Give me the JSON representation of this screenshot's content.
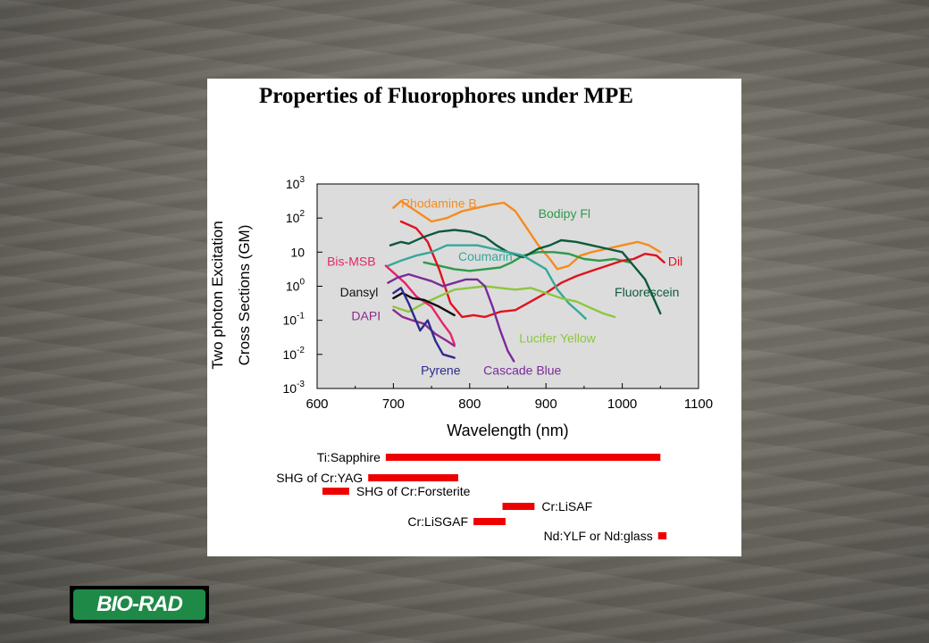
{
  "slide": {
    "title": "Properties of Fluorophores under MPE"
  },
  "logo": {
    "text": "BIO-RAD",
    "color": "#1f8a47"
  },
  "chart_data": {
    "type": "line",
    "xlabel": "Wavelength (nm)",
    "ylabel_lines": [
      "Two photon Excitation",
      "Cross Sections (GM)"
    ],
    "xlim": [
      600,
      1100
    ],
    "xticks": [
      600,
      700,
      800,
      900,
      1000,
      1100
    ],
    "ylim_log10": [
      -3,
      3
    ],
    "yscale": "log",
    "yticks": [
      {
        "base": "10",
        "exp": "-3",
        "value": -3
      },
      {
        "base": "10",
        "exp": "-2",
        "value": -2
      },
      {
        "base": "10",
        "exp": "-1",
        "value": -1
      },
      {
        "base": "10",
        "exp": "0",
        "value": 0
      },
      {
        "base": "10",
        "exp": "",
        "value": 1
      },
      {
        "base": "10",
        "exp": "2",
        "value": 2
      },
      {
        "base": "10",
        "exp": "3",
        "value": 3
      }
    ],
    "grid": false,
    "series": [
      {
        "name": "Rhodamine B",
        "color": "#f68b1e",
        "label_at": [
          710,
          2.3
        ],
        "points": [
          [
            700,
            2.3
          ],
          [
            710,
            2.5
          ],
          [
            730,
            2.2
          ],
          [
            750,
            1.9
          ],
          [
            770,
            2.0
          ],
          [
            790,
            2.2
          ],
          [
            810,
            2.3
          ],
          [
            830,
            2.4
          ],
          [
            845,
            2.45
          ],
          [
            860,
            2.2
          ],
          [
            875,
            1.7
          ],
          [
            890,
            1.2
          ],
          [
            905,
            0.8
          ],
          [
            915,
            0.5
          ],
          [
            930,
            0.6
          ],
          [
            945,
            0.9
          ],
          [
            960,
            1.0
          ],
          [
            980,
            1.1
          ],
          [
            1000,
            1.2
          ],
          [
            1020,
            1.3
          ],
          [
            1035,
            1.2
          ],
          [
            1050,
            1.0
          ]
        ]
      },
      {
        "name": "Bodipy Fl",
        "color": "#2e9a4a",
        "label_at": [
          890,
          2.0
        ],
        "points": [
          [
            740,
            0.7
          ],
          [
            760,
            0.6
          ],
          [
            780,
            0.5
          ],
          [
            800,
            0.45
          ],
          [
            820,
            0.5
          ],
          [
            840,
            0.55
          ],
          [
            855,
            0.7
          ],
          [
            870,
            0.9
          ],
          [
            890,
            1.0
          ],
          [
            910,
            1.0
          ],
          [
            930,
            0.95
          ],
          [
            950,
            0.8
          ],
          [
            970,
            0.75
          ],
          [
            990,
            0.8
          ],
          [
            1010,
            0.7
          ]
        ]
      },
      {
        "name": "Dil",
        "color": "#e0121e",
        "label_at": [
          1060,
          0.6
        ],
        "points": [
          [
            710,
            1.9
          ],
          [
            730,
            1.7
          ],
          [
            745,
            1.3
          ],
          [
            760,
            0.5
          ],
          [
            775,
            -0.5
          ],
          [
            790,
            -0.9
          ],
          [
            805,
            -0.85
          ],
          [
            820,
            -0.9
          ],
          [
            840,
            -0.75
          ],
          [
            860,
            -0.7
          ],
          [
            880,
            -0.45
          ],
          [
            900,
            -0.2
          ],
          [
            920,
            0.1
          ],
          [
            940,
            0.3
          ],
          [
            960,
            0.45
          ],
          [
            980,
            0.6
          ],
          [
            1000,
            0.75
          ],
          [
            1015,
            0.8
          ],
          [
            1030,
            0.95
          ],
          [
            1045,
            0.9
          ],
          [
            1055,
            0.7
          ]
        ]
      },
      {
        "name": "Fluorescein",
        "color": "#0d5a3a",
        "label_at": [
          990,
          -0.3
        ],
        "points": [
          [
            696,
            1.2
          ],
          [
            710,
            1.3
          ],
          [
            720,
            1.25
          ],
          [
            740,
            1.45
          ],
          [
            760,
            1.6
          ],
          [
            780,
            1.65
          ],
          [
            800,
            1.6
          ],
          [
            820,
            1.45
          ],
          [
            835,
            1.2
          ],
          [
            850,
            1.0
          ],
          [
            870,
            0.85
          ],
          [
            890,
            1.1
          ],
          [
            905,
            1.2
          ],
          [
            920,
            1.35
          ],
          [
            940,
            1.3
          ],
          [
            960,
            1.2
          ],
          [
            980,
            1.1
          ],
          [
            1000,
            1.0
          ],
          [
            1015,
            0.6
          ],
          [
            1030,
            0.2
          ],
          [
            1040,
            -0.3
          ],
          [
            1050,
            -0.8
          ]
        ]
      },
      {
        "name": "Coumarin",
        "color": "#35a89a",
        "label_at": [
          785,
          0.75
        ],
        "points": [
          [
            693,
            0.6
          ],
          [
            710,
            0.75
          ],
          [
            730,
            0.9
          ],
          [
            750,
            1.0
          ],
          [
            770,
            1.2
          ],
          [
            790,
            1.2
          ],
          [
            810,
            1.2
          ],
          [
            830,
            1.1
          ],
          [
            850,
            1.0
          ],
          [
            870,
            0.9
          ],
          [
            885,
            0.7
          ],
          [
            900,
            0.5
          ],
          [
            915,
            -0.1
          ],
          [
            930,
            -0.5
          ],
          [
            945,
            -0.8
          ],
          [
            952,
            -0.95
          ]
        ]
      },
      {
        "name": "Lucifer Yellow",
        "color": "#8cc63f",
        "label_at": [
          865,
          -1.65
        ],
        "points": [
          [
            700,
            -0.6
          ],
          [
            720,
            -0.75
          ],
          [
            740,
            -0.5
          ],
          [
            760,
            -0.3
          ],
          [
            780,
            -0.1
          ],
          [
            800,
            -0.05
          ],
          [
            820,
            0.0
          ],
          [
            840,
            -0.05
          ],
          [
            860,
            -0.1
          ],
          [
            880,
            -0.05
          ],
          [
            900,
            -0.2
          ],
          [
            920,
            -0.35
          ],
          [
            940,
            -0.45
          ],
          [
            960,
            -0.65
          ],
          [
            975,
            -0.8
          ],
          [
            990,
            -0.9
          ]
        ]
      },
      {
        "name": "Bis-MSB",
        "color": "#e8226b",
        "label_at": [
          613,
          0.6
        ],
        "points": [
          [
            690,
            0.6
          ],
          [
            700,
            0.4
          ],
          [
            715,
            0.1
          ],
          [
            730,
            -0.3
          ],
          [
            750,
            -0.6
          ],
          [
            765,
            -1.1
          ],
          [
            775,
            -1.4
          ],
          [
            780,
            -1.7
          ]
        ]
      },
      {
        "name": "Dansyl",
        "color": "#111111",
        "label_at": [
          630,
          -0.3
        ],
        "points": [
          [
            700,
            -0.35
          ],
          [
            712,
            -0.2
          ],
          [
            725,
            -0.35
          ],
          [
            740,
            -0.4
          ],
          [
            760,
            -0.6
          ],
          [
            780,
            -0.85
          ]
        ]
      },
      {
        "name": "DAPI",
        "color": "#8c2a8c",
        "label_at": [
          645,
          -1.0
        ],
        "points": [
          [
            700,
            -0.7
          ],
          [
            712,
            -0.9
          ],
          [
            725,
            -1.0
          ],
          [
            740,
            -1.1
          ],
          [
            755,
            -1.4
          ],
          [
            770,
            -1.6
          ],
          [
            780,
            -1.75
          ]
        ]
      },
      {
        "name": "Pyrene",
        "color": "#2e2a8c",
        "label_at": [
          736,
          -2.6
        ],
        "points": [
          [
            700,
            -0.2
          ],
          [
            710,
            -0.05
          ],
          [
            720,
            -0.5
          ],
          [
            735,
            -1.3
          ],
          [
            745,
            -1.0
          ],
          [
            755,
            -1.6
          ],
          [
            765,
            -2.0
          ],
          [
            780,
            -2.1
          ]
        ]
      },
      {
        "name": "Cascade Blue",
        "color": "#7a2a9a",
        "label_at": [
          818,
          -2.6
        ],
        "points": [
          [
            693,
            0.1
          ],
          [
            705,
            0.25
          ],
          [
            720,
            0.35
          ],
          [
            735,
            0.25
          ],
          [
            750,
            0.15
          ],
          [
            765,
            0.0
          ],
          [
            780,
            0.1
          ],
          [
            795,
            0.2
          ],
          [
            810,
            0.2
          ],
          [
            820,
            0.0
          ],
          [
            830,
            -0.6
          ],
          [
            840,
            -1.3
          ],
          [
            850,
            -1.9
          ],
          [
            858,
            -2.2
          ]
        ]
      }
    ],
    "lasers": [
      {
        "name": "Ti:Sapphire",
        "range": [
          690,
          1050
        ],
        "label_side": "left"
      },
      {
        "name": "SHG of Cr:YAG",
        "range": [
          667,
          785
        ],
        "label_side": "left"
      },
      {
        "name": "SHG of Cr:Forsterite",
        "range": [
          607,
          642
        ],
        "label_side": "right"
      },
      {
        "name": "Cr:LiSAF",
        "range": [
          843,
          885
        ],
        "label_side": "right"
      },
      {
        "name": "Cr:LiSGAF",
        "range": [
          805,
          847
        ],
        "label_side": "left"
      },
      {
        "name": "Nd:YLF or Nd:glass",
        "range": [
          1047,
          1058
        ],
        "label_side": "left"
      }
    ],
    "laser_color": "#ee0000"
  }
}
